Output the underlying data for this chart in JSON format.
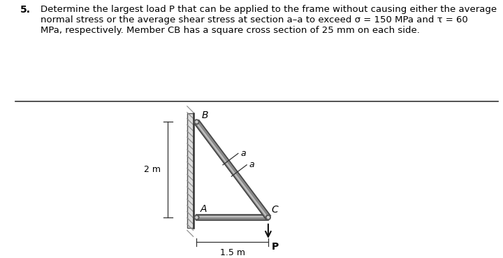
{
  "bg_color": "#ffffff",
  "text_color": "#000000",
  "title_text": "Determine the largest load P that can be applied to the frame without causing either the average\nnormal stress or the average shear stress at section a–a to exceed σ = 150 MPa and τ = 60\nMPa, respectively. Member CB has a square cross section of 25 mm on each side.",
  "label_5": "5.",
  "fig_width": 7.2,
  "fig_height": 3.69,
  "dpi": 100,
  "A": [
    0.0,
    0.0
  ],
  "B": [
    0.0,
    2.0
  ],
  "C": [
    1.5,
    0.0
  ],
  "dim_15m_label": "1.5 m",
  "dim_2m_label": "2 m",
  "label_A": "A",
  "label_B": "B",
  "label_C": "C",
  "label_P": "P",
  "member_outer_color": "#888888",
  "member_inner_color": "#c0c0c0",
  "wall_face_color": "#aaaaaa",
  "wall_hatch_color": "#666666",
  "pin_color": "#555555"
}
